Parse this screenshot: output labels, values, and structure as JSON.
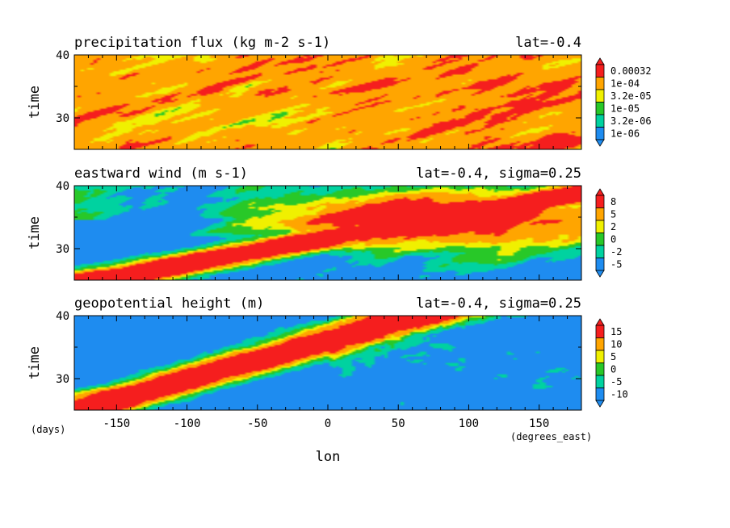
{
  "chart_data": [
    {
      "type": "heatmap",
      "title": "precipitation flux (kg m-2 s-1)",
      "subtitle": "lat=-0.4",
      "ylabel": "time",
      "ylim": [
        25,
        40
      ],
      "yticks": [
        "30",
        "40"
      ],
      "colorbar_labels": [
        "0.00032",
        "1e-04",
        "3.2e-05",
        "1e-05",
        "3.2e-06",
        "1e-06"
      ],
      "palette": [
        "#1e8cf0",
        "#00d2a0",
        "#28c828",
        "#f0f000",
        "#ffa500",
        "#f51e1e"
      ],
      "pattern": "precip"
    },
    {
      "type": "heatmap",
      "title": "eastward wind (m s-1)",
      "subtitle": "lat=-0.4, sigma=0.25",
      "ylabel": "time",
      "ylim": [
        25,
        40
      ],
      "yticks": [
        "30",
        "40"
      ],
      "colorbar_labels": [
        "8",
        "5",
        "2",
        "0",
        "-2",
        "-5"
      ],
      "palette": [
        "#1e8cf0",
        "#00d2a0",
        "#28c828",
        "#f0f000",
        "#ffa500",
        "#f51e1e"
      ],
      "pattern": "wind"
    },
    {
      "type": "heatmap",
      "title": "geopotential height (m)",
      "subtitle": "lat=-0.4, sigma=0.25",
      "ylabel": "time",
      "ylim": [
        25,
        40
      ],
      "yticks": [
        "30",
        "40"
      ],
      "colorbar_labels": [
        "15",
        "10",
        "5",
        "0",
        "-5",
        "-10"
      ],
      "palette": [
        "#1e8cf0",
        "#00d2a0",
        "#28c828",
        "#f0f000",
        "#ffa500",
        "#f51e1e"
      ],
      "pattern": "geo"
    }
  ],
  "x_axis": {
    "label": "lon",
    "unit": "(degrees_east)",
    "range": [
      -180,
      180
    ],
    "ticks": [
      "-150",
      "-100",
      "-50",
      "0",
      "50",
      "100",
      "150"
    ]
  },
  "y_axis_unit": "(days)"
}
